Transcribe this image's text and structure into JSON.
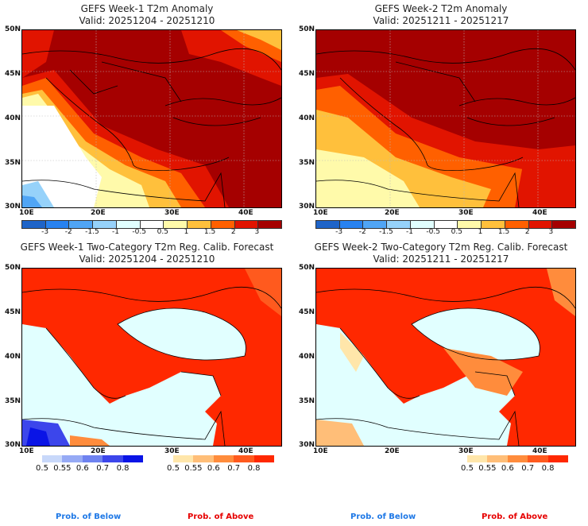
{
  "panels": [
    {
      "title": "GEFS Week-1 T2m Anomaly",
      "valid": "Valid: 20251204 - 20251210"
    },
    {
      "title": "GEFS Week-2 T2m Anomaly",
      "valid": "Valid: 20251211 - 20251217"
    },
    {
      "title": "GEFS Week-1 Two-Category T2m Reg. Calib. Forecast",
      "valid": "Valid: 20251204 - 20251210"
    },
    {
      "title": "GEFS Week-2 Two-Category T2m Reg. Calib. Forecast",
      "valid": "Valid: 20251211 - 20251217"
    }
  ],
  "axes": {
    "lat_labels": [
      "50N",
      "45N",
      "40N",
      "35N",
      "30N"
    ],
    "lon_labels": [
      "10E",
      "20E",
      "30E",
      "40E"
    ]
  },
  "anomaly_colorbar": {
    "ticks": [
      "-3",
      "-2",
      "-1.5",
      "-1",
      "-0.5",
      "0.5",
      "1",
      "1.5",
      "2",
      "3"
    ],
    "colors": [
      "#1e64c8",
      "#2882f0",
      "#50a5f5",
      "#96d2fa",
      "#e1ffff",
      "#ffffff",
      "#fffaaa",
      "#ffc03c",
      "#ff6000",
      "#e11400",
      "#a50000"
    ]
  },
  "below_colorbar": {
    "ticks": [
      "0.5",
      "0.55",
      "0.6",
      "0.7",
      "0.8"
    ],
    "colors": [
      "#c8d8fa",
      "#96aaf5",
      "#6e82f0",
      "#3c46eb",
      "#0a14e6"
    ]
  },
  "above_colorbar": {
    "ticks": [
      "0.5",
      "0.55",
      "0.6",
      "0.7",
      "0.8"
    ],
    "colors": [
      "#ffe6aa",
      "#ffbe78",
      "#ff8c3c",
      "#ff5a1e",
      "#ff2800"
    ]
  },
  "footer": {
    "below_label": "Prob. of Below",
    "above_label": "Prob. of Above",
    "below_color": "#1e78e6",
    "above_color": "#e60000"
  }
}
